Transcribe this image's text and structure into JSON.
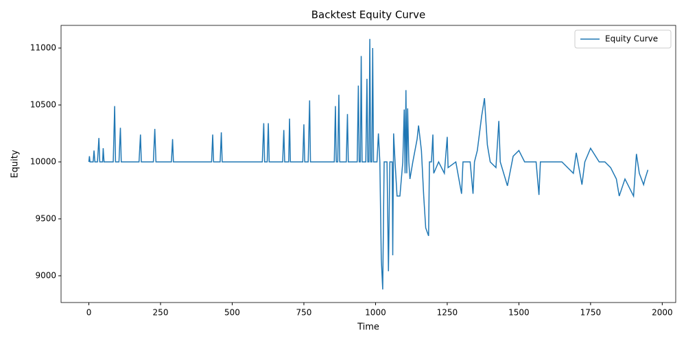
{
  "chart_data": {
    "type": "line",
    "title": "Backtest Equity Curve",
    "x_label": "Time",
    "y_label": "Equity",
    "x": [
      0,
      2,
      4,
      15,
      18,
      21,
      30,
      35,
      38,
      48,
      50,
      53,
      85,
      90,
      93,
      105,
      110,
      113,
      175,
      180,
      183,
      225,
      230,
      234,
      288,
      292,
      295,
      428,
      432,
      435,
      458,
      462,
      465,
      605,
      610,
      613,
      622,
      626,
      629,
      676,
      680,
      683,
      697,
      700,
      703,
      746,
      750,
      753,
      765,
      770,
      773,
      856,
      860,
      863,
      868,
      872,
      875,
      898,
      902,
      905,
      936,
      940,
      943,
      947,
      950,
      953,
      966,
      970,
      973,
      977,
      980,
      983,
      987,
      990,
      993,
      1005,
      1010,
      1015,
      1020,
      1025,
      1030,
      1040,
      1045,
      1050,
      1058,
      1060,
      1063,
      1068,
      1075,
      1085,
      1095,
      1100,
      1103,
      1106,
      1109,
      1112,
      1116,
      1120,
      1130,
      1145,
      1150,
      1160,
      1168,
      1175,
      1185,
      1188,
      1195,
      1200,
      1203,
      1220,
      1240,
      1250,
      1253,
      1280,
      1300,
      1305,
      1330,
      1340,
      1345,
      1355,
      1370,
      1380,
      1390,
      1400,
      1420,
      1430,
      1435,
      1460,
      1480,
      1500,
      1520,
      1560,
      1570,
      1575,
      1650,
      1690,
      1700,
      1720,
      1730,
      1750,
      1780,
      1800,
      1820,
      1840,
      1850,
      1870,
      1880,
      1900,
      1910,
      1920,
      1935,
      1940,
      1950
    ],
    "series": [
      {
        "name": "Equity Curve",
        "color": "#1f77b4",
        "values": [
          10000,
          10050,
          10000,
          10000,
          10100,
          10000,
          10000,
          10210,
          10000,
          10000,
          10120,
          10000,
          10000,
          10490,
          10000,
          10000,
          10300,
          10000,
          10000,
          10240,
          10000,
          10000,
          10290,
          10000,
          10000,
          10200,
          10000,
          10000,
          10240,
          10000,
          10000,
          10260,
          10000,
          10000,
          10340,
          10000,
          10000,
          10340,
          10000,
          10000,
          10280,
          10000,
          10000,
          10380,
          10000,
          10000,
          10330,
          10000,
          10000,
          10540,
          10000,
          10000,
          10490,
          10000,
          10000,
          10590,
          10000,
          10000,
          10420,
          10000,
          10000,
          10670,
          10000,
          10000,
          10930,
          10000,
          10000,
          10730,
          10000,
          10000,
          11080,
          10000,
          10000,
          11000,
          10000,
          10000,
          10250,
          10000,
          9150,
          8880,
          10000,
          10000,
          9040,
          10000,
          10000,
          9180,
          10250,
          10000,
          9700,
          9700,
          10000,
          10460,
          9900,
          10630,
          9900,
          10470,
          10000,
          9850,
          10000,
          10200,
          10320,
          10100,
          9700,
          9420,
          9350,
          10000,
          10000,
          10240,
          9900,
          10000,
          9900,
          10220,
          9950,
          10000,
          9720,
          10000,
          10000,
          9720,
          10000,
          10100,
          10400,
          10560,
          10150,
          10000,
          9950,
          10360,
          10000,
          9790,
          10050,
          10100,
          10000,
          10000,
          9710,
          10000,
          10000,
          9900,
          10080,
          9800,
          10000,
          10120,
          10000,
          10000,
          9950,
          9850,
          9700,
          9850,
          9800,
          9700,
          10070,
          9900,
          9800,
          9850,
          9930
        ]
      }
    ],
    "xlim": [
      -97,
      2047
    ],
    "ylim": [
      8765,
      11199
    ],
    "xticks": [
      0,
      250,
      500,
      750,
      1000,
      1250,
      1500,
      1750,
      2000
    ],
    "yticks": [
      9000,
      9500,
      10000,
      10500,
      11000
    ],
    "legend": "upper right"
  }
}
